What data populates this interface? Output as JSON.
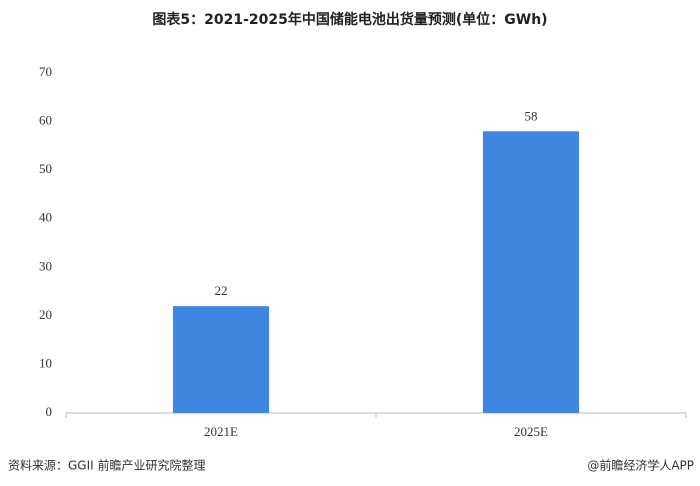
{
  "chart_data": {
    "type": "bar",
    "title": "图表5：2021-2025年中国储能电池出货量预测(单位：GWh)",
    "categories": [
      "2021E",
      "2025E"
    ],
    "values": [
      22,
      58
    ],
    "color": "#3f86e0",
    "ylim": [
      0,
      70
    ],
    "yticks": [
      0,
      10,
      20,
      30,
      40,
      50,
      60,
      70
    ],
    "grid": false,
    "source": "资料来源：GGII 前瞻产业研究院整理",
    "credit": "@前瞻经济学人APP"
  }
}
